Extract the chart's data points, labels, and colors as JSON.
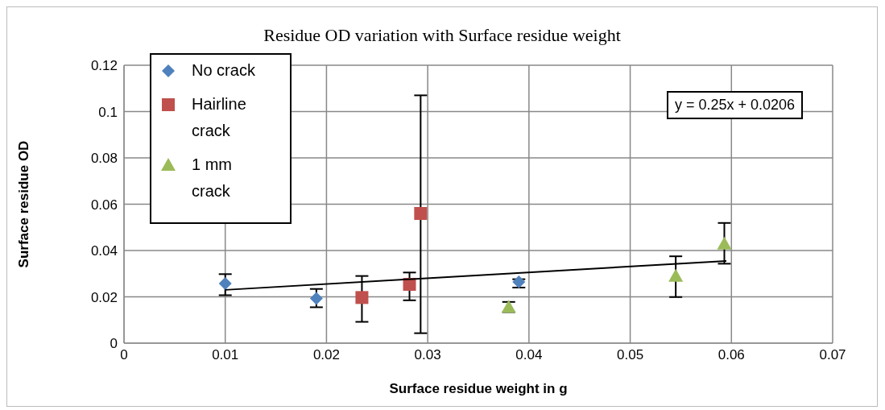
{
  "chart_data": {
    "type": "scatter",
    "title": "Residue OD variation  with Surface residue  weight",
    "xlabel": "Surface residue weight in g",
    "ylabel": "Surface residue OD",
    "xlim": [
      0,
      0.07
    ],
    "xticks": [
      0,
      0.01,
      0.02,
      0.03,
      0.04,
      0.05,
      0.06,
      0.07
    ],
    "ylim": [
      0,
      0.12
    ],
    "yticks": [
      0,
      0.02,
      0.04,
      0.06,
      0.08,
      0.1,
      0.12
    ],
    "grid": true,
    "legend": "top left",
    "annotations": [
      "y = 0.25x + 0.0206"
    ],
    "series": [
      {
        "name": "No crack",
        "color": "#4f81bd",
        "marker": "diamond",
        "x": [
          0.01,
          0.019,
          0.039
        ],
        "values": [
          0.0257,
          0.0193,
          0.0264
        ],
        "errors": [
          [
            0.0207,
            0.0298
          ],
          [
            0.0155,
            0.0234
          ],
          [
            0.024,
            0.0276
          ]
        ]
      },
      {
        "name": "Hairline crack",
        "color": "#c0504d",
        "marker": "square",
        "x": [
          0.0235,
          0.0282,
          0.0293
        ],
        "values": [
          0.0197,
          0.0254,
          0.056
        ],
        "errors": [
          [
            0.0092,
            0.029
          ],
          [
            0.0185,
            0.0305
          ],
          [
            0.0043,
            0.107
          ]
        ]
      },
      {
        "name": "1 mm crack",
        "color": "#9bbb59",
        "marker": "triangle",
        "x": [
          0.038,
          0.0545,
          0.0593
        ],
        "values": [
          0.0156,
          0.029,
          0.0429
        ],
        "errors": [
          [
            0.0134,
            0.0178
          ],
          [
            0.0199,
            0.0375
          ],
          [
            0.0343,
            0.0519
          ]
        ]
      },
      {
        "type": "line",
        "color": "#000000",
        "marker": "none",
        "x": [
          0.01,
          0.0595
        ],
        "values": [
          0.023,
          0.0355
        ]
      }
    ]
  }
}
